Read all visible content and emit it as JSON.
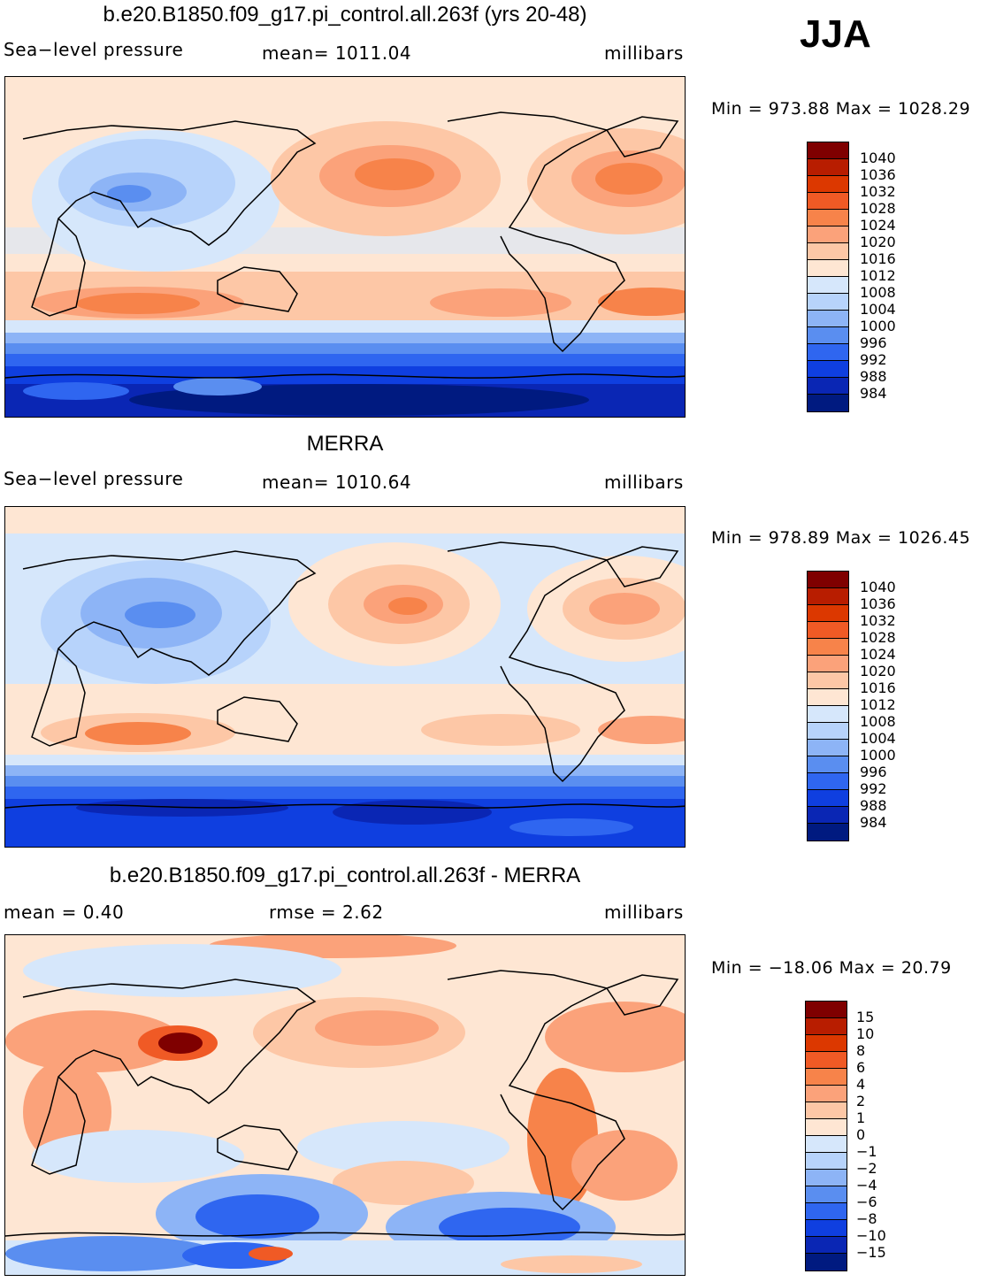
{
  "season": "JJA",
  "panels": [
    {
      "title": "b.e20.B1850.f09_g17.pi_control.all.263f (yrs 20-48)",
      "left_label": "Sea−level pressure",
      "center_label": "mean=  1011.04",
      "right_label": "millibars",
      "minmax": "Min  =  973.88  Max  =  1028.29",
      "map_description": "model sea-level pressure"
    },
    {
      "title": "MERRA",
      "left_label": "Sea−level pressure",
      "center_label": "mean=  1010.64",
      "right_label": "millibars",
      "minmax": "Min  =  978.89  Max  =  1026.45",
      "map_description": "observed sea-level pressure"
    },
    {
      "title": "b.e20.B1850.f09_g17.pi_control.all.263f - MERRA",
      "left_label": "mean =     0.40",
      "center_label": "rmse =     2.62",
      "right_label": "millibars",
      "minmax": "Min  =  −18.06  Max  =    20.79",
      "map_description": "difference"
    }
  ],
  "colorbars": {
    "pressure": {
      "levels": [
        "1040",
        "1036",
        "1032",
        "1028",
        "1024",
        "1020",
        "1016",
        "1012",
        "1008",
        "1004",
        "1000",
        "996",
        "992",
        "988",
        "984"
      ],
      "colors": [
        "#7f0000",
        "#b81d00",
        "#dc3800",
        "#f05a25",
        "#f7834a",
        "#fba27a",
        "#fdc7a6",
        "#fee6d3",
        "#d6e7fb",
        "#b7d3fb",
        "#8db4f6",
        "#5a8ef0",
        "#2f66f0",
        "#0f3fe0",
        "#0a26b4",
        "#001a80"
      ]
    },
    "difference": {
      "levels": [
        "15",
        "10",
        "8",
        "6",
        "4",
        "2",
        "1",
        "0",
        "−1",
        "−2",
        "−4",
        "−6",
        "−8",
        "−10",
        "−15"
      ],
      "colors": [
        "#7f0000",
        "#b81d00",
        "#dc3800",
        "#f05a25",
        "#f7834a",
        "#fba27a",
        "#fdc7a6",
        "#fee6d3",
        "#d6e7fb",
        "#b7d3fb",
        "#8db4f6",
        "#5a8ef0",
        "#2f66f0",
        "#0f3fe0",
        "#0a26b4",
        "#001a80"
      ]
    }
  }
}
